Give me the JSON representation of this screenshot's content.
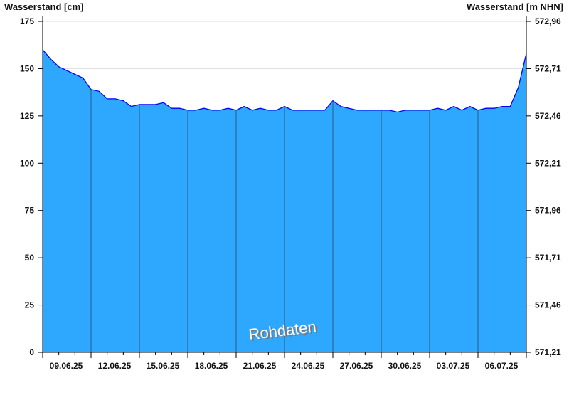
{
  "chart_data": {
    "type": "area",
    "ylabel_left": "Wasserstand [cm]",
    "ylabel_right": "Wasserstand [m NHN]",
    "watermark": "Rohdaten",
    "ylim": [
      0,
      175
    ],
    "yticks": [
      0,
      25,
      50,
      75,
      100,
      125,
      150,
      175
    ],
    "yticks_right": [
      "571,21",
      "571,46",
      "571,71",
      "571,96",
      "572,21",
      "572,46",
      "572,71",
      "572,96"
    ],
    "xlim": [
      "09.06.25",
      "09.07.25"
    ],
    "xtick_labels": [
      "09.06.25",
      "12.06.25",
      "15.06.25",
      "18.06.25",
      "21.06.25",
      "24.06.25",
      "27.06.25",
      "30.06.25",
      "03.07.25",
      "06.07.25"
    ],
    "grid": true,
    "colors": {
      "fill": "#2ea8ff",
      "line": "#0000ff",
      "grid": "#dddddd",
      "vgrid": "#2a5a80"
    },
    "sample_interval_hours": 12,
    "values": [
      160,
      155,
      151,
      149,
      147,
      145,
      139,
      138,
      134,
      134,
      133,
      130,
      131,
      131,
      131,
      132,
      129,
      129,
      128,
      128,
      129,
      128,
      128,
      129,
      128,
      130,
      128,
      129,
      128,
      128,
      130,
      128,
      128,
      128,
      128,
      128,
      133,
      130,
      129,
      128,
      128,
      128,
      128,
      128,
      127,
      128,
      128,
      128,
      128,
      129,
      128,
      130,
      128,
      130,
      128,
      129,
      129,
      130,
      130,
      140,
      158
    ]
  }
}
